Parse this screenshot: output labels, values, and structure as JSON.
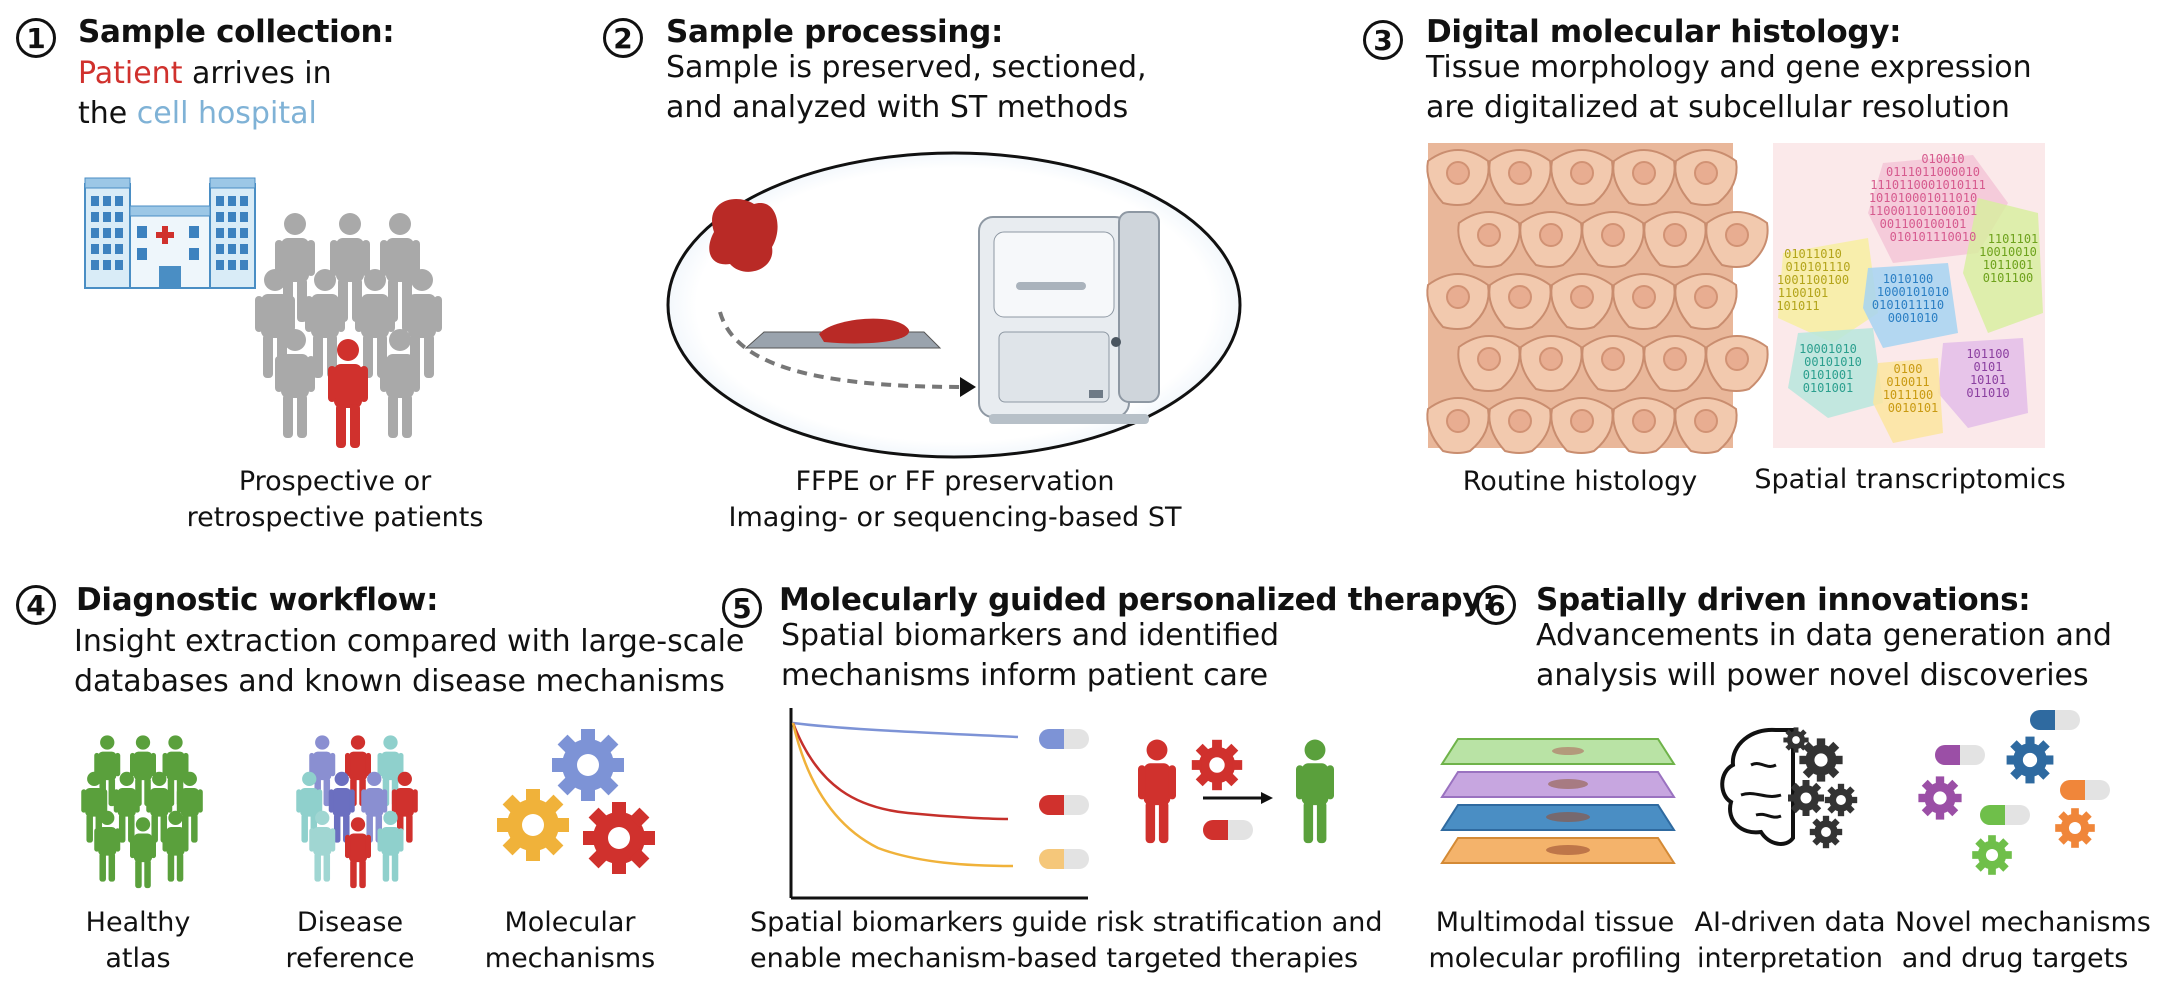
{
  "colors": {
    "red": "#d0312d",
    "blue": "#7fb2d6",
    "green": "#5aa03c",
    "gray": "#a9a9a9",
    "orange": "#f0b23a"
  },
  "panel1": {
    "number": "1",
    "title": "Sample collection:",
    "desc_patient": "Patient",
    "desc_rest1": " arrives in",
    "desc_the": "the ",
    "desc_hospital": "cell hospital",
    "caption1": "Prospective or",
    "caption2": "retrospective patients"
  },
  "panel2": {
    "number": "2",
    "title": "Sample processing:",
    "desc1": "Sample is preserved, sectioned,",
    "desc2": "and analyzed with ST methods",
    "caption1": "FFPE or FF preservation",
    "caption2": "Imaging- or sequencing-based ST"
  },
  "panel3": {
    "number": "3",
    "title": "Digital molecular histology:",
    "desc1": "Tissue morphology and gene expression",
    "desc2": "are digitalized at subcellular resolution",
    "caption_left": "Routine histology",
    "caption_right": "Spatial transcriptomics"
  },
  "panel4": {
    "number": "4",
    "title": "Diagnostic workflow:",
    "desc1": "Insight extraction compared with large-scale",
    "desc2": "databases and known disease mechanisms",
    "cap_a1": "Healthy",
    "cap_a2": "atlas",
    "cap_b1": "Disease",
    "cap_b2": "reference",
    "cap_c1": "Molecular",
    "cap_c2": "mechanisms"
  },
  "panel5": {
    "number": "5",
    "title": "Molecularly guided personalized therapy:",
    "desc1": "Spatial biomarkers and identified",
    "desc2": "mechanisms inform patient care",
    "caption1": "Spatial biomarkers guide risk stratification and",
    "caption2": "enable mechanism-based targeted therapies"
  },
  "panel6": {
    "number": "6",
    "title": "Spatially driven innovations:",
    "desc1": "Advancements in data generation and",
    "desc2": "analysis will power novel discoveries",
    "cap_a1": "Multimodal tissue",
    "cap_a2": "molecular profiling",
    "cap_b1": "AI-driven data",
    "cap_b2": "interpretation",
    "cap_c1": "Novel mechanisms",
    "cap_c2": "and drug targets"
  },
  "st_bits": [
    "010010",
    "0111011000010",
    "1110110001010111",
    "101010001011010",
    "110001101100101",
    "001100100101",
    "010101110010",
    "01011010",
    "010101110",
    "1001100100",
    "1100101",
    "101011",
    "1010100",
    "1000101010",
    "0101011110",
    "0001010",
    "10001010",
    "00101010",
    "0101001",
    "0101001",
    "0100",
    "010011",
    "1011100",
    "0010101",
    "101100",
    "0101",
    "10101",
    "011010",
    "1101101",
    "10010010",
    "1011001",
    "0101100"
  ]
}
